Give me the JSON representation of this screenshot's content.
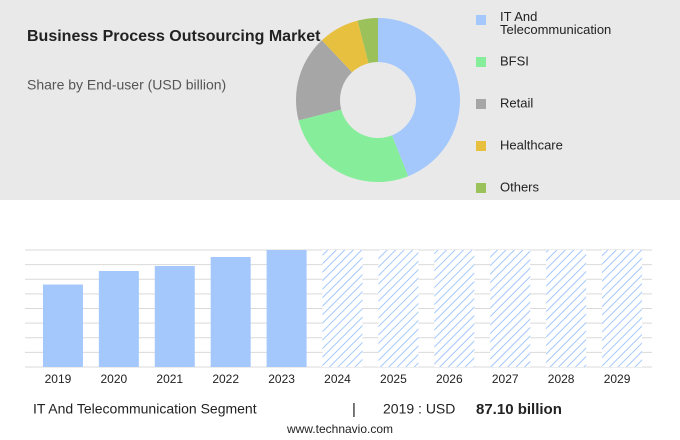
{
  "chart_data": [
    {
      "type": "donut",
      "title": "Business Process Outsourcing Market",
      "subtitle": "Share by End-user (USD billion)",
      "series": [
        {
          "name": "IT And Telecommunication",
          "color": "#a4c8fc",
          "values": [
            44
          ]
        },
        {
          "name": "BFSI",
          "color": "#86ed9a",
          "values": [
            27
          ]
        },
        {
          "name": "Retail",
          "color": "#a6a6a6",
          "values": [
            17
          ]
        },
        {
          "name": "Healthcare",
          "color": "#e8c040",
          "values": [
            8
          ]
        },
        {
          "name": "Others",
          "color": "#9bc15a",
          "values": [
            4
          ]
        }
      ]
    },
    {
      "type": "bar",
      "categories": [
        "2019",
        "2020",
        "2021",
        "2022",
        "2023",
        "2024",
        "2025",
        "2026",
        "2027",
        "2028",
        "2029"
      ],
      "values": [
        87.1,
        101.4,
        106.7,
        116.2,
        123.6,
        null,
        null,
        null,
        null,
        null,
        null
      ],
      "color": "#a4c8fc",
      "ylim": [
        0,
        123.6
      ],
      "grid": true
    }
  ],
  "footer": {
    "segment": "IT And Telecommunication Segment",
    "separator": "|",
    "year_unit": "2019 : USD",
    "value": "87.10 billion",
    "source": "www.technavio.com"
  }
}
